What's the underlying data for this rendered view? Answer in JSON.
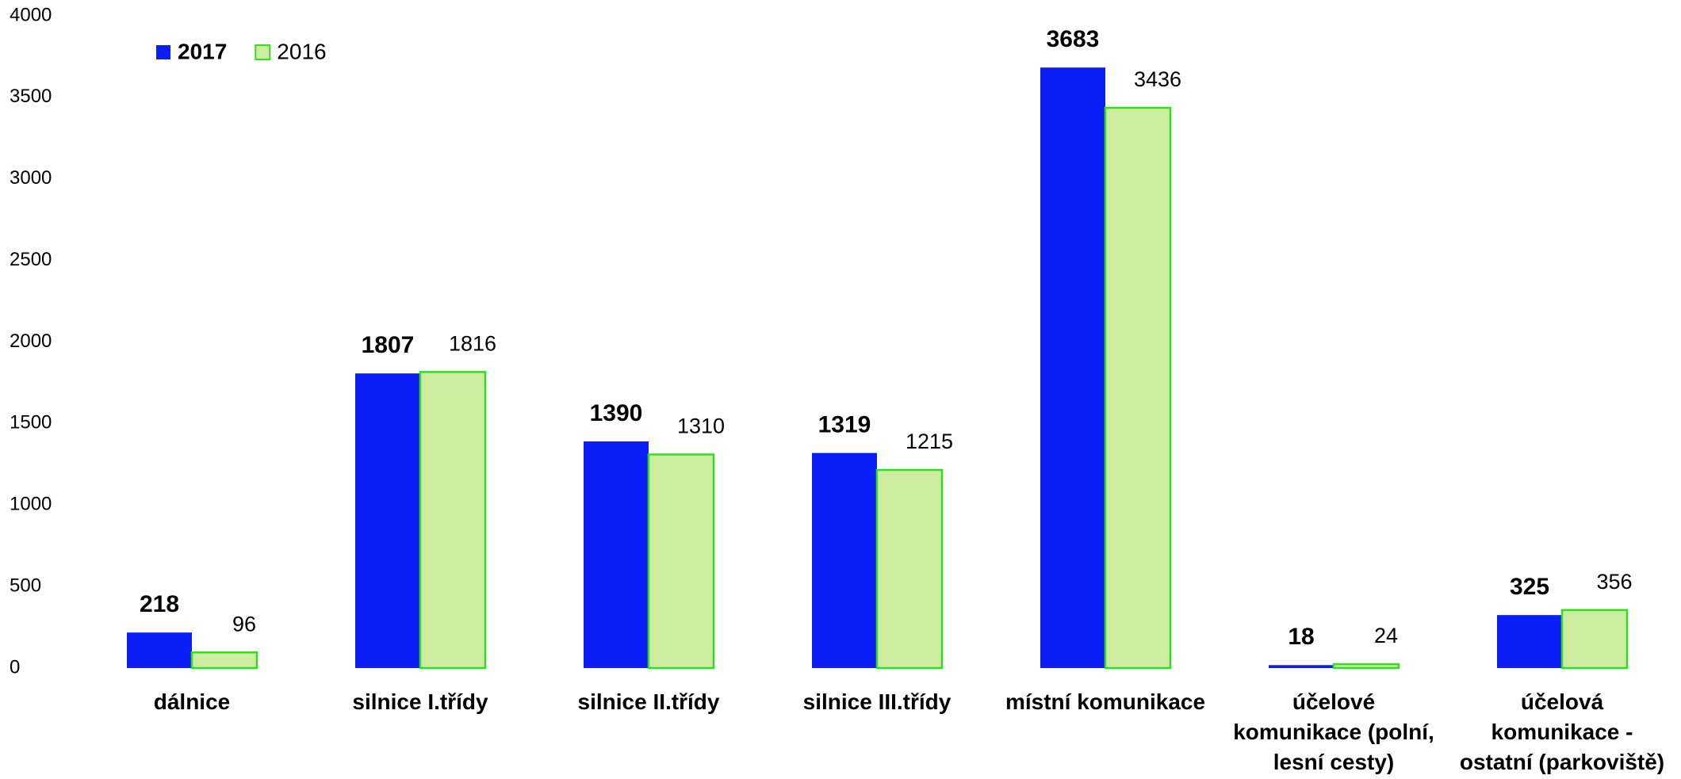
{
  "chart_data": {
    "type": "bar",
    "categories": [
      "dálnice",
      "silnice I.třídy",
      "silnice II.třídy",
      "silnice III.třídy",
      "místní komunikace",
      "účelové komunikace (polní, lesní cesty)",
      "účelová komunikace - ostatní (parkoviště)"
    ],
    "series": [
      {
        "name": "2017",
        "color": "#0a1ef5",
        "values": [
          218,
          1807,
          1390,
          1319,
          3683,
          18,
          325
        ]
      },
      {
        "name": "2016",
        "color": "#cdeea0",
        "edgecolor": "#33dd22",
        "values": [
          96,
          1816,
          1310,
          1215,
          3436,
          24,
          356
        ]
      }
    ],
    "ylim": [
      0,
      4000
    ],
    "yticks": [
      0,
      500,
      1000,
      1500,
      2000,
      2500,
      3000,
      3500,
      4000
    ],
    "grid": false,
    "legend": "upper left"
  }
}
